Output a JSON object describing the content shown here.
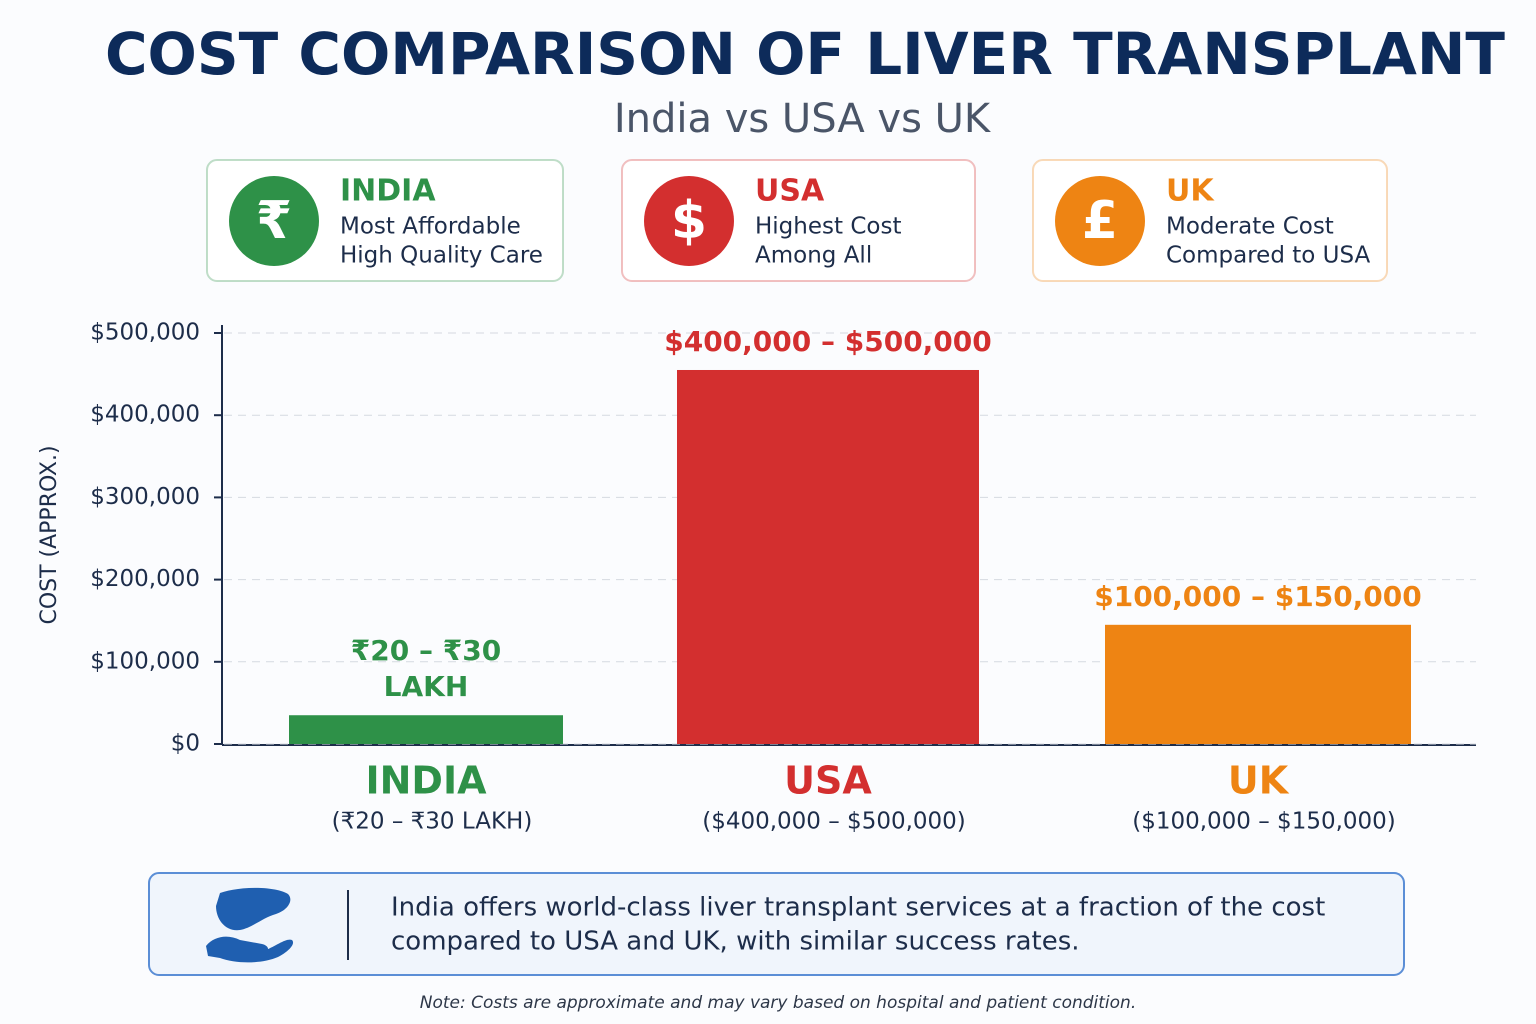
{
  "chart_data": {
    "type": "bar",
    "title": "COST COMPARISON OF LIVER TRANSPLANT",
    "subtitle": "India vs USA vs UK",
    "cards": [
      {
        "symbol": "₹",
        "title": "INDIA",
        "lines": [
          "Most Affordable",
          "High Quality Care"
        ]
      },
      {
        "symbol": "$",
        "title": "USA",
        "lines": [
          "Highest Cost",
          "Among All"
        ]
      },
      {
        "symbol": "£",
        "title": "UK",
        "lines": [
          "Moderate Cost",
          "Compared to USA"
        ]
      }
    ],
    "y_label": "COST (APPROX.)",
    "categories": [
      "INDIA",
      "USA",
      "UK"
    ],
    "category_notes": [
      "(₹20 – ₹30 LAKH)",
      "($400,000 – $500,000)",
      "($100,000 – $150,000)"
    ],
    "values": [
      35000,
      455000,
      145000
    ],
    "bar_labels": [
      [
        "₹20 – ₹30",
        "LAKH"
      ],
      [
        "$400,000 – $500,000"
      ],
      [
        "$100,000 – $150,000"
      ]
    ],
    "colors": [
      "#2e9148",
      "#d32f2f",
      "#ee8413"
    ],
    "ylim": [
      0,
      500000
    ],
    "yticks": [
      {
        "value": 0,
        "label": "$0"
      },
      {
        "value": 100000,
        "label": "$100,000"
      },
      {
        "value": 200000,
        "label": "$200,000"
      },
      {
        "value": 300000,
        "label": "$300,000"
      },
      {
        "value": 400000,
        "label": "$400,000"
      },
      {
        "value": 500000,
        "label": "$500,000"
      }
    ],
    "grid": true,
    "footer": [
      "India offers world-class liver transplant services at a fraction of the cost",
      "compared to USA and UK, with similar success rates."
    ],
    "note": "Note: Costs are approximate and may vary based on hospital and patient condition."
  }
}
